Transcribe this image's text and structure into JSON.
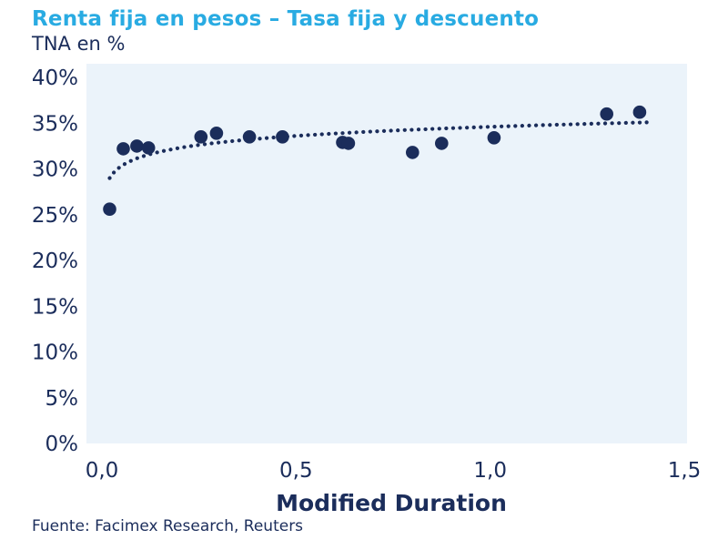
{
  "colors": {
    "accent": "#29ABE2",
    "navy": "#1B2D5B",
    "plot_bg": "#EBF3FA"
  },
  "chart_data": {
    "type": "scatter",
    "title": "Renta fija en pesos – Tasa fija y descuento",
    "subtitle": "TNA en %",
    "xlabel": "Modified Duration",
    "source": "Fuente: Facimex Research, Reuters",
    "xlim": [
      0,
      1.5
    ],
    "ylim": [
      0,
      40
    ],
    "grid": false,
    "legend": null,
    "x_tick_values": [
      0,
      0.5,
      1.0,
      1.5
    ],
    "x_tick_labels": [
      "0,0",
      "0,5",
      "1,0",
      "1,5"
    ],
    "y_tick_values": [
      0,
      5,
      10,
      15,
      20,
      25,
      30,
      35,
      40
    ],
    "y_tick_labels": [
      "0%",
      "5%",
      "10%",
      "15%",
      "20%",
      "25%",
      "30%",
      "35%",
      "40%"
    ],
    "points": [
      [
        0.02,
        25.6
      ],
      [
        0.055,
        32.2
      ],
      [
        0.09,
        32.5
      ],
      [
        0.12,
        32.3
      ],
      [
        0.255,
        33.5
      ],
      [
        0.295,
        33.9
      ],
      [
        0.38,
        33.5
      ],
      [
        0.465,
        33.5
      ],
      [
        0.62,
        32.9
      ],
      [
        0.635,
        32.8
      ],
      [
        0.8,
        31.8
      ],
      [
        0.875,
        32.8
      ],
      [
        1.01,
        33.4
      ],
      [
        1.3,
        36.0
      ],
      [
        1.385,
        36.2
      ]
    ],
    "trend": {
      "style": "dotted",
      "model": "log",
      "description": "y = a + b*ln(x), TNA in % vs modified duration",
      "a": 34.6,
      "b": 1.433,
      "x_start": 0.02,
      "x_end": 1.42
    }
  }
}
